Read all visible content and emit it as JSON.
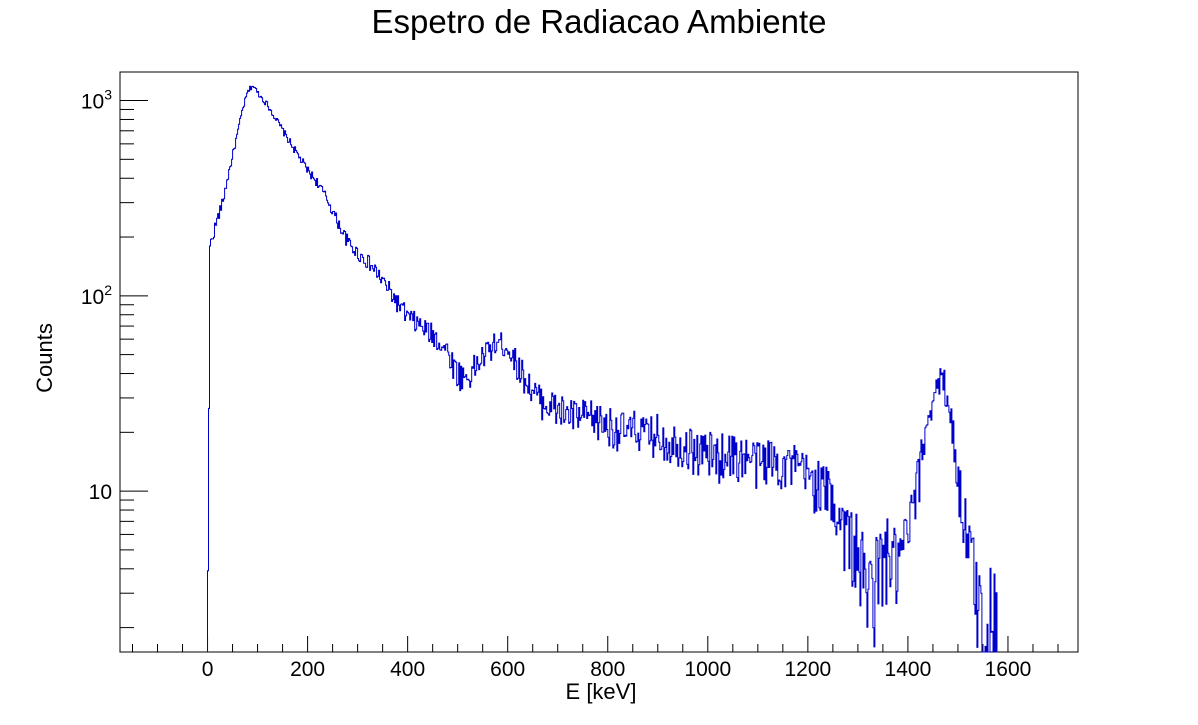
{
  "chart_data": {
    "type": "line",
    "style": "histogram-step",
    "title": "Espetro de Radiacao Ambiente",
    "xlabel": "E [keV]",
    "ylabel": "Counts",
    "xlim": [
      -175,
      1740
    ],
    "ylim": [
      1.5,
      1400
    ],
    "yscale": "log",
    "x_ticks": [
      "0",
      "200",
      "400",
      "600",
      "800",
      "1000",
      "1200",
      "1400",
      "1600"
    ],
    "y_ticks": [
      {
        "base": "10",
        "exp": "3"
      },
      {
        "base": "10",
        "exp": "2"
      },
      {
        "base": "10",
        "exp": ""
      }
    ],
    "grid": false,
    "legend": "none",
    "color": "#0000cc",
    "series": [
      {
        "x": [
          0,
          5,
          10,
          20,
          30,
          40,
          50,
          60,
          70,
          80,
          90,
          100,
          120,
          140,
          160,
          180,
          200,
          220,
          240,
          260,
          280,
          300,
          320,
          340,
          360,
          380,
          400,
          420,
          440,
          460,
          480,
          500,
          520,
          540,
          560,
          580,
          600,
          620,
          640,
          660,
          680,
          700,
          720,
          740,
          760,
          780,
          800,
          820,
          840,
          860,
          880,
          900,
          920,
          940,
          960,
          980,
          1000,
          1020,
          1040,
          1060,
          1080,
          1100,
          1120,
          1140,
          1160,
          1180,
          1200,
          1220,
          1240,
          1260,
          1280,
          1300,
          1320,
          1340,
          1360,
          1380,
          1400,
          1410,
          1420,
          1430,
          1440,
          1450,
          1460,
          1470,
          1480,
          1490,
          1500,
          1510,
          1520,
          1530,
          1540,
          1550,
          1560,
          1570,
          1580
        ],
        "y": [
          1.5,
          180,
          200,
          250,
          300,
          400,
          520,
          680,
          900,
          1100,
          1200,
          1100,
          950,
          780,
          640,
          530,
          440,
          380,
          310,
          240,
          190,
          165,
          150,
          130,
          110,
          92,
          78,
          72,
          66,
          60,
          52,
          40,
          38,
          45,
          52,
          58,
          55,
          44,
          36,
          30,
          28,
          26,
          25,
          24,
          24,
          23,
          22,
          21,
          20,
          21,
          19,
          20,
          18,
          18,
          17,
          16,
          16,
          15,
          16,
          15,
          15,
          14,
          15,
          14,
          14,
          13,
          12,
          11,
          10,
          8,
          6,
          5,
          3,
          4,
          5,
          4,
          6,
          8,
          11,
          17,
          24,
          30,
          35,
          38,
          30,
          20,
          12,
          8,
          6,
          4,
          3,
          2,
          2,
          3,
          2
        ]
      }
    ]
  }
}
